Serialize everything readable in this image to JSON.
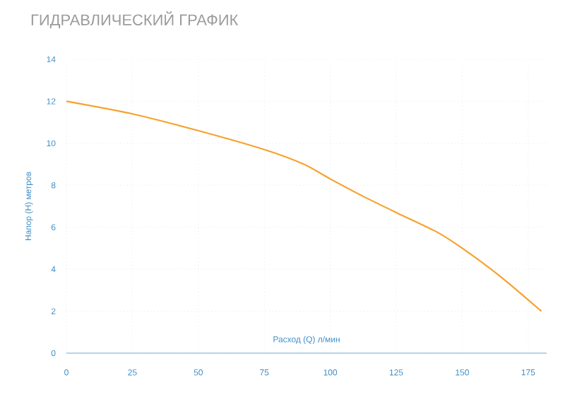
{
  "chart_data": {
    "type": "line",
    "title": "ГИДРАВЛИЧЕСКИЙ ГРАФИК",
    "xlabel": "Расход (Q) л/мин",
    "ylabel": "Напор (H) метров",
    "x": [
      0,
      25,
      50,
      75,
      90,
      100,
      112,
      125,
      140,
      150,
      165,
      180
    ],
    "series": [
      {
        "color": "#f7a12e",
        "values": [
          12,
          11.4,
          10.6,
          9.7,
          9.0,
          8.3,
          7.5,
          6.7,
          5.8,
          5.0,
          3.6,
          2.0
        ]
      }
    ],
    "xlim": [
      0,
      182
    ],
    "xticks": [
      0,
      25,
      50,
      75,
      100,
      125,
      150,
      175
    ],
    "ylim": [
      0,
      14
    ],
    "yticks": [
      0,
      2,
      4,
      6,
      8,
      10,
      12,
      14
    ],
    "grid": true,
    "marker": "none",
    "line_style": "solid"
  }
}
